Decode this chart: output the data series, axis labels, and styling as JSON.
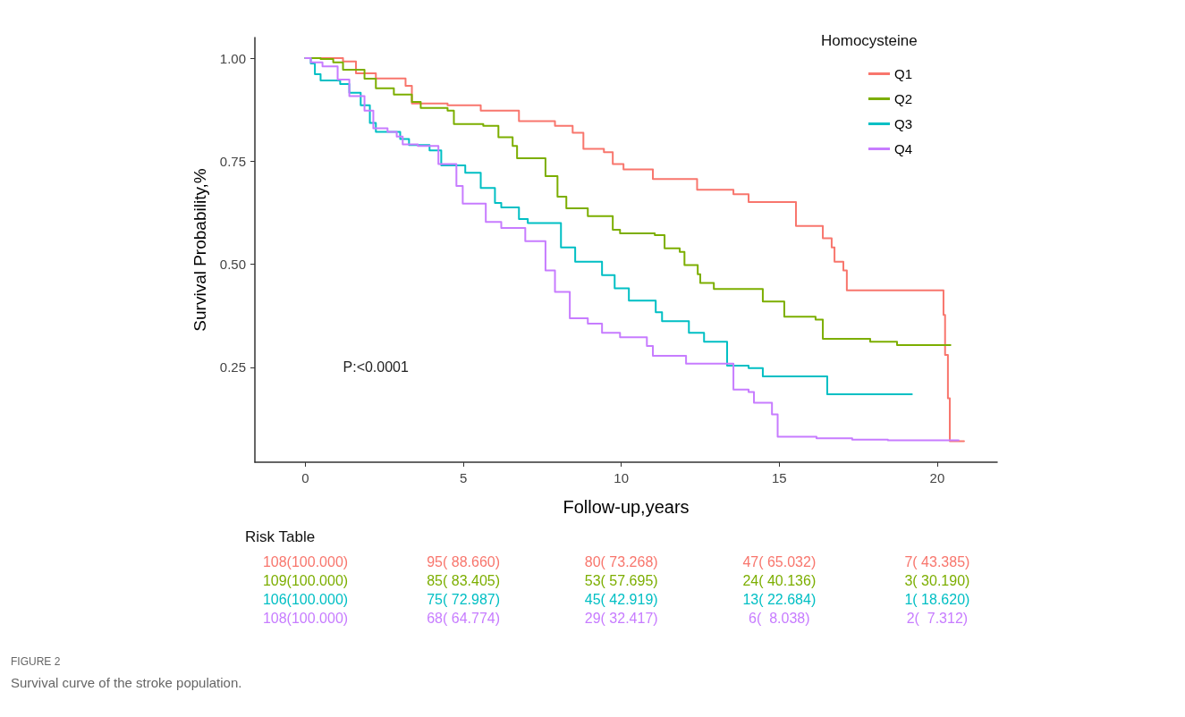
{
  "chart_data": {
    "type": "step",
    "xlabel": "Follow-up,years",
    "ylabel": "Survival Probability,%",
    "legend_title": "Homocysteine",
    "legend": "top right",
    "grid": false,
    "marker": "none",
    "line_style": "solid",
    "xlim": [
      -1.6,
      21.9
    ],
    "xticks": [
      0,
      5,
      10,
      15,
      20
    ],
    "ylim": [
      0.02,
      1.05
    ],
    "yticks": [
      {
        "value": 0.25,
        "label": "0.25"
      },
      {
        "value": 0.5,
        "label": "0.50"
      },
      {
        "value": 0.75,
        "label": "0.75"
      },
      {
        "value": 1,
        "label": "1.00"
      }
    ],
    "series": [
      {
        "name": "Q1",
        "color": "#f8766d",
        "x": [
          0,
          1.19,
          1.6,
          2.23,
          3.17,
          3.37,
          4.5,
          5.55,
          6.76,
          7.9,
          8.46,
          8.8,
          9.45,
          9.73,
          10.07,
          11.0,
          12.4,
          13.55,
          14.03,
          15.53,
          16.38,
          16.66,
          16.75,
          17.03,
          17.14,
          20.2,
          20.25,
          20.34,
          20.4,
          20.45,
          20.85
        ],
        "values": [
          1,
          0.992,
          0.963,
          0.951,
          0.933,
          0.89,
          0.886,
          0.873,
          0.847,
          0.836,
          0.819,
          0.78,
          0.772,
          0.743,
          0.73,
          0.707,
          0.681,
          0.67,
          0.651,
          0.593,
          0.563,
          0.541,
          0.506,
          0.485,
          0.437,
          0.377,
          0.28,
          0.175,
          0.071,
          0.071,
          0.071
        ]
      },
      {
        "name": "Q2",
        "color": "#7cae00",
        "x": [
          0,
          0.48,
          0.88,
          1.19,
          1.87,
          2.23,
          2.8,
          3.37,
          3.65,
          4.5,
          4.7,
          5.63,
          6.11,
          6.56,
          6.7,
          7.6,
          7.98,
          8.26,
          8.94,
          9.73,
          9.96,
          11.06,
          11.37,
          11.85,
          12.0,
          12.42,
          12.5,
          12.93,
          14.48,
          15.16,
          16.15,
          16.38,
          17.88,
          18.73,
          20.42
        ],
        "values": [
          1,
          0.998,
          0.99,
          0.972,
          0.95,
          0.927,
          0.912,
          0.894,
          0.879,
          0.873,
          0.84,
          0.836,
          0.808,
          0.787,
          0.757,
          0.714,
          0.664,
          0.636,
          0.617,
          0.584,
          0.575,
          0.571,
          0.539,
          0.53,
          0.498,
          0.476,
          0.455,
          0.44,
          0.41,
          0.373,
          0.366,
          0.319,
          0.312,
          0.304,
          0.304
        ]
      },
      {
        "name": "Q3",
        "color": "#00bfc4",
        "x": [
          0,
          0.17,
          0.3,
          0.48,
          1.1,
          1.39,
          1.75,
          2.04,
          2.23,
          3.0,
          3.28,
          3.93,
          4.3,
          5.06,
          5.55,
          6.0,
          6.2,
          6.76,
          7.04,
          8.09,
          8.54,
          9.39,
          9.79,
          10.24,
          11.09,
          11.29,
          12.14,
          12.62,
          13.35,
          14.03,
          14.48,
          16.52,
          19.2
        ],
        "values": [
          1,
          0.987,
          0.961,
          0.946,
          0.937,
          0.916,
          0.886,
          0.843,
          0.821,
          0.804,
          0.789,
          0.776,
          0.74,
          0.722,
          0.685,
          0.649,
          0.638,
          0.61,
          0.6,
          0.541,
          0.506,
          0.474,
          0.442,
          0.412,
          0.384,
          0.362,
          0.334,
          0.312,
          0.254,
          0.248,
          0.228,
          0.185,
          0.185
        ]
      },
      {
        "name": "Q4",
        "color": "#c77cff",
        "x": [
          0,
          0.17,
          0.54,
          1.02,
          1.39,
          1.87,
          2.15,
          2.6,
          2.89,
          3.08,
          3.56,
          4.21,
          4.78,
          4.98,
          5.71,
          6.2,
          6.96,
          7.6,
          7.9,
          8.37,
          8.94,
          9.39,
          9.96,
          10.81,
          11.0,
          12.05,
          13.55,
          14.03,
          14.2,
          14.77,
          14.95,
          16.18,
          17.31,
          18.44,
          20.68
        ],
        "values": [
          1,
          0.99,
          0.98,
          0.948,
          0.908,
          0.873,
          0.83,
          0.821,
          0.81,
          0.791,
          0.787,
          0.743,
          0.69,
          0.647,
          0.603,
          0.588,
          0.556,
          0.485,
          0.433,
          0.369,
          0.356,
          0.334,
          0.323,
          0.302,
          0.278,
          0.259,
          0.196,
          0.19,
          0.164,
          0.136,
          0.082,
          0.078,
          0.075,
          0.073,
          0.073
        ]
      }
    ],
    "annotations": [
      "P:<0.0001",
      "Risk Table",
      "108(100.000)",
      "95( 88.660)",
      "80( 73.268)",
      "47( 65.032)",
      "7( 43.385)",
      "109(100.000)",
      "85( 83.405)",
      "53( 57.695)",
      "24( 40.136)",
      "3( 30.190)",
      "106(100.000)",
      "75( 72.987)",
      "45( 42.919)",
      "13( 22.684)",
      "1( 18.620)",
      "108(100.000)",
      "68( 64.774)",
      "29( 32.417)",
      "6(  8.038)",
      "2(  7.312)",
      "FIGURE 2",
      "Survival curve of the stroke population."
    ]
  }
}
